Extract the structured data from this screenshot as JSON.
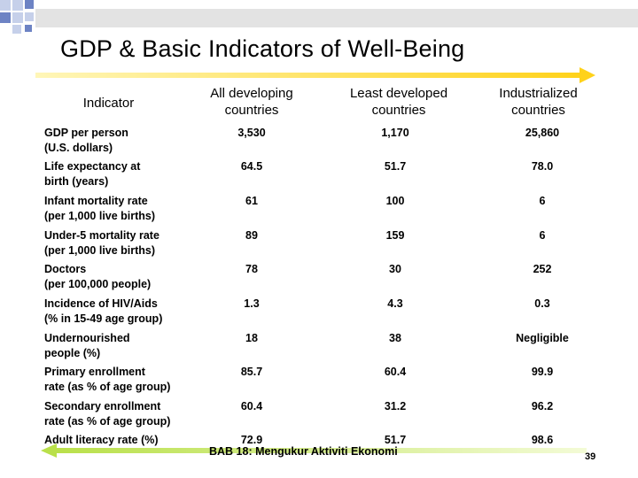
{
  "title": "GDP & Basic Indicators of Well-Being",
  "colors": {
    "accent_arrow_top": "#ffd21a",
    "accent_arrow_bottom": "#b9e04a",
    "squares_blue": "#6d83c4",
    "squares_light": "#c6d0ea",
    "topbar": "#e3e3e3"
  },
  "table": {
    "headers": [
      "Indicator",
      "All developing countries",
      "Least developed countries",
      "Industrialized countries"
    ],
    "rows": [
      {
        "indicator": [
          "GDP per person",
          "(U.S. dollars)"
        ],
        "values": [
          "3,530",
          "1,170",
          "25,860"
        ]
      },
      {
        "indicator": [
          "Life expectancy at",
          "birth (years)"
        ],
        "values": [
          "64.5",
          "51.7",
          "78.0"
        ]
      },
      {
        "indicator": [
          "Infant mortality rate",
          "(per 1,000 live births)"
        ],
        "values": [
          "61",
          "100",
          "6"
        ]
      },
      {
        "indicator": [
          "Under-5 mortality rate",
          "(per 1,000 live births)"
        ],
        "values": [
          "89",
          "159",
          "6"
        ]
      },
      {
        "indicator": [
          "Doctors",
          "(per 100,000 people)"
        ],
        "values": [
          "78",
          "30",
          "252"
        ]
      },
      {
        "indicator": [
          "Incidence of HIV/Aids",
          "(% in 15-49 age group)"
        ],
        "values": [
          "1.3",
          "4.3",
          "0.3"
        ]
      },
      {
        "indicator": [
          "Undernourished",
          "people (%)"
        ],
        "values": [
          "18",
          "38",
          "Negligible"
        ]
      },
      {
        "indicator": [
          "Primary enrollment",
          "rate (as % of age group)"
        ],
        "values": [
          "85.7",
          "60.4",
          "99.9"
        ]
      },
      {
        "indicator": [
          "Secondary enrollment",
          "rate (as % of age group)"
        ],
        "values": [
          "60.4",
          "31.2",
          "96.2"
        ]
      },
      {
        "indicator": [
          "Adult literacy rate (%)",
          ""
        ],
        "values": [
          "72.9",
          "51.7",
          "98.6"
        ]
      }
    ]
  },
  "footer": "BAB 18: Mengukur Aktiviti Ekonomi",
  "page_number": "39"
}
